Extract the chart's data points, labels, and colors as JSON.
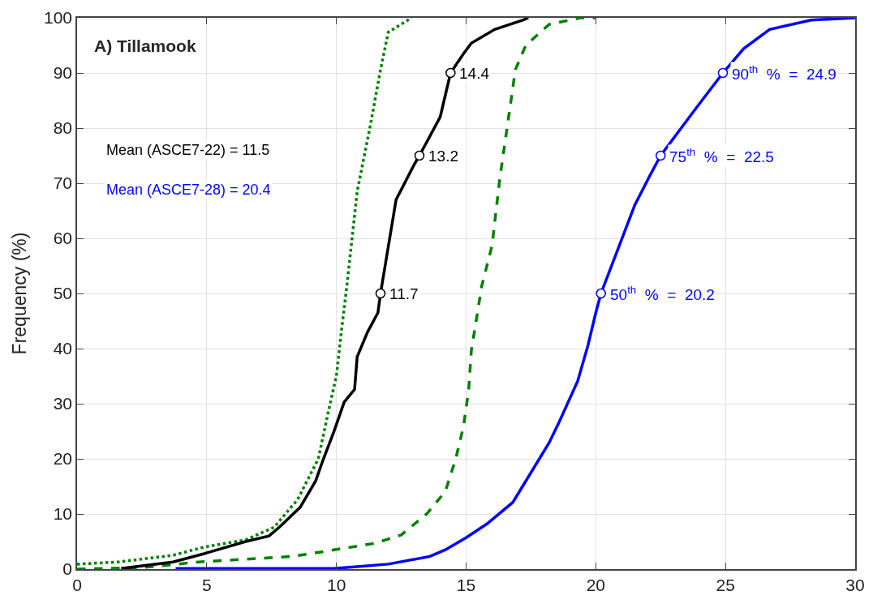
{
  "chart_data": {
    "type": "line",
    "title": "A) Tillamook",
    "ylabel": "Frequency (%)",
    "xlim": [
      0,
      30
    ],
    "xticks": [
      0,
      5,
      10,
      15,
      20,
      25,
      30
    ],
    "ylim": [
      0,
      100
    ],
    "yticks": [
      0,
      10,
      20,
      30,
      40,
      50,
      60,
      70,
      80,
      90,
      100
    ],
    "grid": true,
    "series": [
      {
        "color": "#008000",
        "line_style": "dotted",
        "marker": "none",
        "x": [
          0,
          1.6,
          3.7,
          4.9,
          6.5,
          7.6,
          8.5,
          9.3,
          9.7,
          10.0,
          10.2,
          10.4,
          10.8,
          11.3,
          11.7,
          12.0,
          12.9
        ],
        "values": [
          0.9,
          1.3,
          2.5,
          4,
          5.3,
          7.6,
          12.6,
          20,
          28.8,
          35.1,
          43.5,
          51.3,
          68.5,
          80.3,
          90.6,
          97.4,
          100
        ]
      },
      {
        "color": "#008000",
        "line_style": "dashed",
        "marker": "none",
        "x": [
          0,
          2.6,
          4.7,
          8.3,
          9.4,
          11.5,
          12.5,
          13.5,
          14.2,
          14.6,
          14.9,
          15.1,
          15.2,
          15.4,
          15.6,
          16.0,
          16.3,
          16.6,
          16.9,
          17.3,
          18.2,
          19.4,
          20.0
        ],
        "values": [
          0,
          0.3,
          1.3,
          2.3,
          3.1,
          4.7,
          6.2,
          10.1,
          14.1,
          20,
          25.9,
          32.6,
          39.6,
          45.4,
          51.3,
          58.7,
          70.9,
          80.7,
          90.6,
          95,
          98.8,
          100,
          100
        ]
      },
      {
        "color": "#000000",
        "line_style": "solid",
        "marker": "none",
        "x": [
          1.7,
          3.7,
          4.9,
          6.5,
          7.4,
          7.8,
          8.6,
          9.2,
          9.5,
          9.9,
          10.3,
          10.7,
          10.8,
          11.2,
          11.6,
          11.7,
          12.3,
          13.0,
          13.2,
          14.0,
          14.4,
          14.9,
          15.2,
          16.1,
          17.2,
          17.4
        ],
        "values": [
          0.1,
          1.3,
          2.8,
          5,
          6,
          7.6,
          11.2,
          16,
          20,
          24.9,
          30.3,
          32.6,
          38.5,
          43,
          46.5,
          50,
          67,
          73.4,
          75,
          82,
          90,
          93.5,
          95.4,
          97.9,
          99.6,
          100
        ]
      },
      {
        "color": "#0000ff",
        "line_style": "solid",
        "marker": "none",
        "x": [
          3.8,
          9.9,
          12.0,
          13.6,
          14.2,
          15.0,
          15.8,
          16.8,
          17.5,
          18.2,
          18.6,
          19.3,
          19.7,
          20.0,
          20.2,
          21.5,
          22.1,
          22.5,
          23.8,
          24.9,
          25.7,
          26.7,
          28.3,
          30.0
        ],
        "values": [
          0.1,
          0.1,
          0.9,
          2.3,
          3.5,
          5.7,
          8.2,
          12.1,
          17.5,
          22.9,
          26.8,
          34.1,
          40.6,
          46.5,
          50,
          66,
          71.5,
          75,
          83.2,
          90,
          94.4,
          97.9,
          99.6,
          100
        ]
      },
      {
        "type": "scatter",
        "color": "#000000",
        "marker": "circle",
        "x": [
          11.7,
          13.2,
          14.4
        ],
        "values": [
          50,
          75,
          90
        ]
      },
      {
        "type": "scatter",
        "color": "#0000ff",
        "marker": "circle",
        "x": [
          20.2,
          22.5,
          24.9
        ],
        "values": [
          50,
          75,
          90
        ]
      }
    ],
    "annotations": [
      {
        "text": "11.7",
        "x": 11.7,
        "y": 50
      },
      {
        "text": "13.2",
        "x": 13.2,
        "y": 75
      },
      {
        "text": "14.4",
        "x": 14.4,
        "y": 90
      },
      {
        "text": "50$^{th}$  %  =  20.2",
        "x": 20.2,
        "y": 50
      },
      {
        "text": "75$^{th}$  %  =  22.5",
        "x": 22.5,
        "y": 75
      },
      {
        "text": "90$^{th}$  %  =  24.9",
        "x": 24.9,
        "y": 90
      },
      "Mean (ASCE7-22) = 11.5",
      "Mean (ASCE7-28) = 20.4"
    ]
  }
}
